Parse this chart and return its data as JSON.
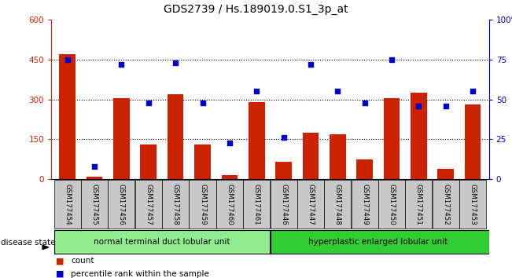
{
  "title": "GDS2739 / Hs.189019.0.S1_3p_at",
  "samples": [
    "GSM177454",
    "GSM177455",
    "GSM177456",
    "GSM177457",
    "GSM177458",
    "GSM177459",
    "GSM177460",
    "GSM177461",
    "GSM177446",
    "GSM177447",
    "GSM177448",
    "GSM177449",
    "GSM177450",
    "GSM177451",
    "GSM177452",
    "GSM177453"
  ],
  "counts": [
    470,
    10,
    305,
    130,
    320,
    130,
    15,
    290,
    65,
    175,
    170,
    75,
    305,
    325,
    40,
    280
  ],
  "percentiles": [
    75,
    8,
    72,
    48,
    73,
    48,
    23,
    55,
    26,
    72,
    55,
    48,
    75,
    46,
    46,
    55
  ],
  "group1_label": "normal terminal duct lobular unit",
  "group1_count": 8,
  "group2_label": "hyperplastic enlarged lobular unit",
  "group2_count": 8,
  "left_ylim": [
    0,
    600
  ],
  "left_yticks": [
    0,
    150,
    300,
    450,
    600
  ],
  "right_ylim": [
    0,
    100
  ],
  "right_yticks": [
    0,
    25,
    50,
    75,
    100
  ],
  "bar_color": "#cc2200",
  "dot_color": "#0000cc",
  "group1_color": "#90ee90",
  "group2_color": "#32cd32",
  "tick_bg": "#c8c8c8",
  "legend_count_color": "#cc2200",
  "legend_pct_color": "#0000cc",
  "hgrid_vals": [
    150,
    300,
    450
  ]
}
